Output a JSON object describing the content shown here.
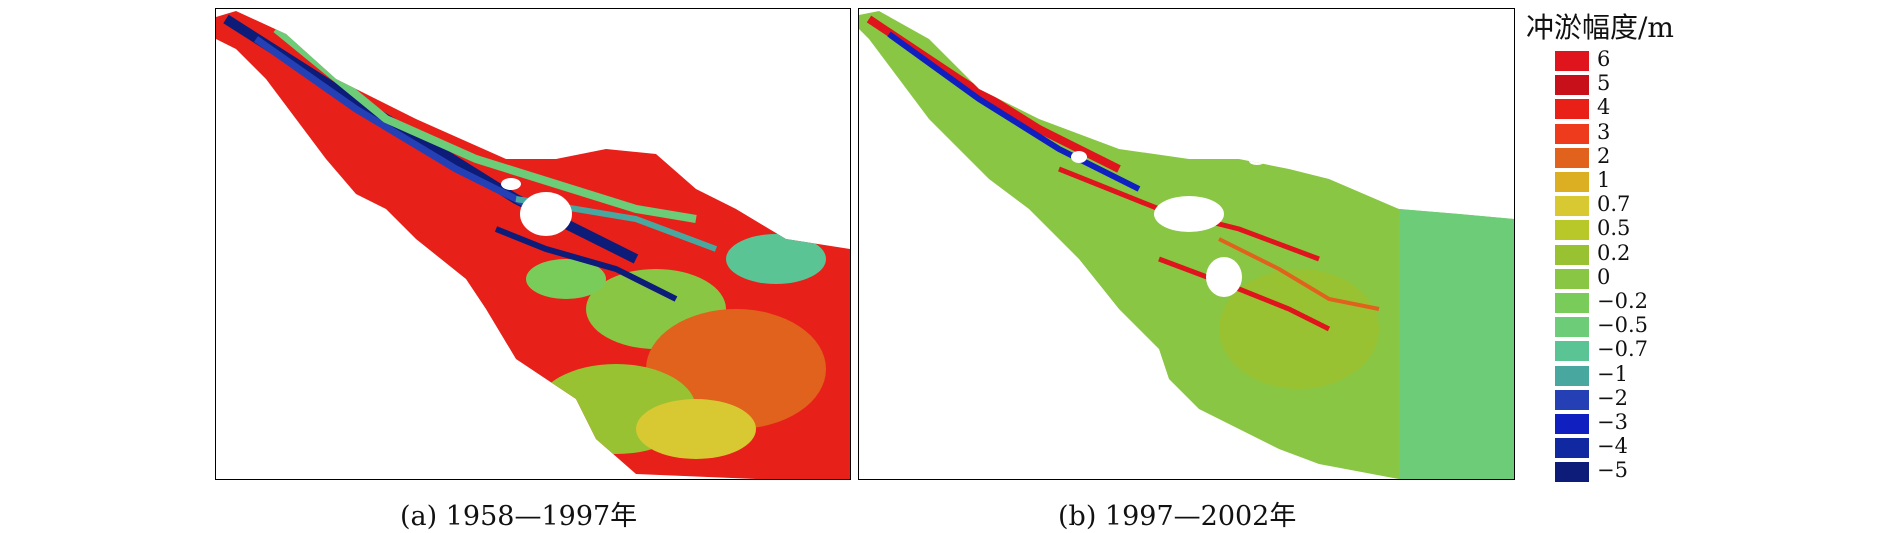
{
  "legend": {
    "title": "冲淤幅度/m",
    "items": [
      {
        "label": "6",
        "color": "#e0141c"
      },
      {
        "label": "5",
        "color": "#c8101a"
      },
      {
        "label": "4",
        "color": "#e82018"
      },
      {
        "label": "3",
        "color": "#ee3b1e"
      },
      {
        "label": "2",
        "color": "#e0621c"
      },
      {
        "label": "1",
        "color": "#dcae22"
      },
      {
        "label": "0.7",
        "color": "#d8c832"
      },
      {
        "label": "0.5",
        "color": "#b8c828"
      },
      {
        "label": "0.2",
        "color": "#98c232"
      },
      {
        "label": "0",
        "color": "#88c644"
      },
      {
        "label": "−0.2",
        "color": "#7acc5a"
      },
      {
        "label": "−0.5",
        "color": "#6ccc78"
      },
      {
        "label": "−0.7",
        "color": "#5ac494"
      },
      {
        "label": "−1",
        "color": "#48a8a0"
      },
      {
        "label": "−2",
        "color": "#2440b4"
      },
      {
        "label": "−3",
        "color": "#1020c0"
      },
      {
        "label": "−4",
        "color": "#1028a0"
      },
      {
        "label": "−5",
        "color": "#0c1c78"
      }
    ]
  },
  "panels": [
    {
      "caption": "(a) 1958—1997年"
    },
    {
      "caption": "(b) 1997—2002年"
    }
  ]
}
